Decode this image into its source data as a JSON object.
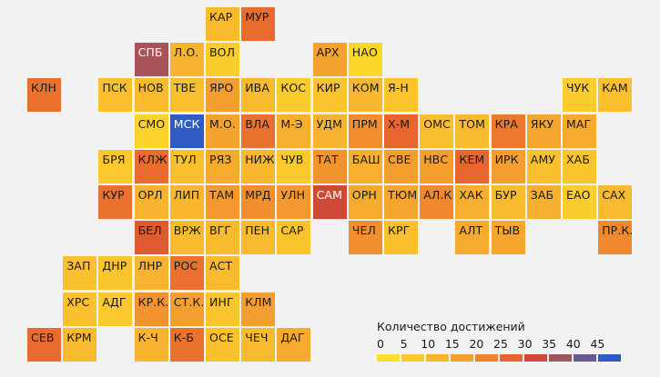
{
  "regions": [
    {
      "label": "КАР",
      "col": 6,
      "row": 0,
      "value": 8
    },
    {
      "label": "МУР",
      "col": 7,
      "row": 0,
      "value": 24
    },
    {
      "label": "СПБ",
      "col": 4,
      "row": 1,
      "value": 34
    },
    {
      "label": "Л.О.",
      "col": 5,
      "row": 1,
      "value": 10
    },
    {
      "label": "ВОЛ",
      "col": 6,
      "row": 1,
      "value": 4
    },
    {
      "label": "АРХ",
      "col": 9,
      "row": 1,
      "value": 14
    },
    {
      "label": "НАО",
      "col": 10,
      "row": 1,
      "value": 2
    },
    {
      "label": "КЛН",
      "col": 1,
      "row": 2,
      "value": 23
    },
    {
      "label": "ПСК",
      "col": 3,
      "row": 2,
      "value": 7
    },
    {
      "label": "НОВ",
      "col": 4,
      "row": 2,
      "value": 8
    },
    {
      "label": "ТВЕ",
      "col": 5,
      "row": 2,
      "value": 7
    },
    {
      "label": "ЯРО",
      "col": 6,
      "row": 2,
      "value": 15
    },
    {
      "label": "ИВА",
      "col": 7,
      "row": 2,
      "value": 8
    },
    {
      "label": "КОС",
      "col": 8,
      "row": 2,
      "value": 4
    },
    {
      "label": "КИР",
      "col": 9,
      "row": 2,
      "value": 6
    },
    {
      "label": "КОМ",
      "col": 10,
      "row": 2,
      "value": 9
    },
    {
      "label": "Я-Н",
      "col": 11,
      "row": 2,
      "value": 6
    },
    {
      "label": "ЧУК",
      "col": 16,
      "row": 2,
      "value": 4
    },
    {
      "label": "КАМ",
      "col": 17,
      "row": 2,
      "value": 7
    },
    {
      "label": "СМО",
      "col": 4,
      "row": 3,
      "value": 3
    },
    {
      "label": "МСК",
      "col": 5,
      "row": 3,
      "value": 45
    },
    {
      "label": "М.О.",
      "col": 6,
      "row": 3,
      "value": 14
    },
    {
      "label": "ВЛА",
      "col": 7,
      "row": 3,
      "value": 23
    },
    {
      "label": "М-Э",
      "col": 8,
      "row": 3,
      "value": 11
    },
    {
      "label": "УДМ",
      "col": 9,
      "row": 3,
      "value": 10
    },
    {
      "label": "ПРМ",
      "col": 10,
      "row": 3,
      "value": 18
    },
    {
      "label": "Х-М",
      "col": 11,
      "row": 3,
      "value": 25
    },
    {
      "label": "ОМС",
      "col": 12,
      "row": 3,
      "value": 7
    },
    {
      "label": "ТОМ",
      "col": 13,
      "row": 3,
      "value": 8
    },
    {
      "label": "КРА",
      "col": 14,
      "row": 3,
      "value": 22
    },
    {
      "label": "ЯКУ",
      "col": 15,
      "row": 3,
      "value": 13
    },
    {
      "label": "МАГ",
      "col": 16,
      "row": 3,
      "value": 12
    },
    {
      "label": "БРЯ",
      "col": 3,
      "row": 4,
      "value": 5
    },
    {
      "label": "КЛЖ",
      "col": 4,
      "row": 4,
      "value": 24
    },
    {
      "label": "ТУЛ",
      "col": 5,
      "row": 4,
      "value": 7
    },
    {
      "label": "РЯЗ",
      "col": 6,
      "row": 4,
      "value": 12
    },
    {
      "label": "НИЖ",
      "col": 7,
      "row": 4,
      "value": 9
    },
    {
      "label": "ЧУВ",
      "col": 8,
      "row": 4,
      "value": 5
    },
    {
      "label": "ТАТ",
      "col": 9,
      "row": 4,
      "value": 17
    },
    {
      "label": "БАШ",
      "col": 10,
      "row": 4,
      "value": 11
    },
    {
      "label": "СВЕ",
      "col": 11,
      "row": 4,
      "value": 15
    },
    {
      "label": "НВС",
      "col": 12,
      "row": 4,
      "value": 15
    },
    {
      "label": "КЕМ",
      "col": 13,
      "row": 4,
      "value": 25
    },
    {
      "label": "ИРК",
      "col": 14,
      "row": 4,
      "value": 15
    },
    {
      "label": "АМУ",
      "col": 15,
      "row": 4,
      "value": 7
    },
    {
      "label": "ХАБ",
      "col": 16,
      "row": 4,
      "value": 6
    },
    {
      "label": "КУР",
      "col": 3,
      "row": 5,
      "value": 23
    },
    {
      "label": "ОРЛ",
      "col": 4,
      "row": 5,
      "value": 10
    },
    {
      "label": "ЛИП",
      "col": 5,
      "row": 5,
      "value": 9
    },
    {
      "label": "ТАМ",
      "col": 6,
      "row": 5,
      "value": 16
    },
    {
      "label": "МРД",
      "col": 7,
      "row": 5,
      "value": 18
    },
    {
      "label": "УЛН",
      "col": 8,
      "row": 5,
      "value": 16
    },
    {
      "label": "САМ",
      "col": 9,
      "row": 5,
      "value": 30
    },
    {
      "label": "ОРН",
      "col": 10,
      "row": 5,
      "value": 12
    },
    {
      "label": "ТЮМ",
      "col": 11,
      "row": 5,
      "value": 13
    },
    {
      "label": "АЛ.К.",
      "col": 12,
      "row": 5,
      "value": 19
    },
    {
      "label": "ХАК",
      "col": 13,
      "row": 5,
      "value": 11
    },
    {
      "label": "БУР",
      "col": 14,
      "row": 5,
      "value": 8
    },
    {
      "label": "ЗАБ",
      "col": 15,
      "row": 5,
      "value": 11
    },
    {
      "label": "ЕАО",
      "col": 16,
      "row": 5,
      "value": 4
    },
    {
      "label": "САХ",
      "col": 17,
      "row": 5,
      "value": 8
    },
    {
      "label": "БЕЛ",
      "col": 4,
      "row": 6,
      "value": 27
    },
    {
      "label": "ВРЖ",
      "col": 5,
      "row": 6,
      "value": 8
    },
    {
      "label": "ВГГ",
      "col": 6,
      "row": 6,
      "value": 8
    },
    {
      "label": "ПЕН",
      "col": 7,
      "row": 6,
      "value": 8
    },
    {
      "label": "САР",
      "col": 8,
      "row": 6,
      "value": 6
    },
    {
      "label": "ЧЕЛ",
      "col": 10,
      "row": 6,
      "value": 18
    },
    {
      "label": "КРГ",
      "col": 11,
      "row": 6,
      "value": 7
    },
    {
      "label": "АЛТ",
      "col": 13,
      "row": 6,
      "value": 12
    },
    {
      "label": "ТЫВ",
      "col": 14,
      "row": 6,
      "value": 13
    },
    {
      "label": "ПР.К.",
      "col": 17,
      "row": 6,
      "value": 19
    },
    {
      "label": "ЗАП",
      "col": 2,
      "row": 7,
      "value": 7
    },
    {
      "label": "ДНР",
      "col": 3,
      "row": 7,
      "value": 6
    },
    {
      "label": "ЛНР",
      "col": 4,
      "row": 7,
      "value": 10
    },
    {
      "label": "РОС",
      "col": 5,
      "row": 7,
      "value": 23
    },
    {
      "label": "АСТ",
      "col": 6,
      "row": 7,
      "value": 8
    },
    {
      "label": "ХРС",
      "col": 2,
      "row": 8,
      "value": 7
    },
    {
      "label": "АДГ",
      "col": 3,
      "row": 8,
      "value": 5
    },
    {
      "label": "КР.К.",
      "col": 4,
      "row": 8,
      "value": 17
    },
    {
      "label": "СТ.К.",
      "col": 5,
      "row": 8,
      "value": 15
    },
    {
      "label": "ИНГ",
      "col": 6,
      "row": 8,
      "value": 6
    },
    {
      "label": "КЛМ",
      "col": 7,
      "row": 8,
      "value": 15
    },
    {
      "label": "СЕВ",
      "col": 1,
      "row": 9,
      "value": 24
    },
    {
      "label": "КРМ",
      "col": 2,
      "row": 9,
      "value": 8
    },
    {
      "label": "К-Ч",
      "col": 4,
      "row": 9,
      "value": 10
    },
    {
      "label": "К-Б",
      "col": 5,
      "row": 9,
      "value": 23
    },
    {
      "label": "ОСЕ",
      "col": 6,
      "row": 9,
      "value": 7
    },
    {
      "label": "ЧЕЧ",
      "col": 7,
      "row": 9,
      "value": 8
    },
    {
      "label": "ДАГ",
      "col": 8,
      "row": 9,
      "value": 12
    }
  ],
  "legend": {
    "title": "Количество достижений",
    "ticks": [
      "0",
      "5",
      "10",
      "15",
      "20",
      "25",
      "30",
      "35",
      "40",
      "45"
    ],
    "colors": [
      "#fde02a",
      "#fbc82d",
      "#f8b32f",
      "#f49e2f",
      "#ef842d",
      "#e8652e",
      "#cf4a36",
      "#9e5560",
      "#6a5a92",
      "#2e5cc3"
    ]
  }
}
